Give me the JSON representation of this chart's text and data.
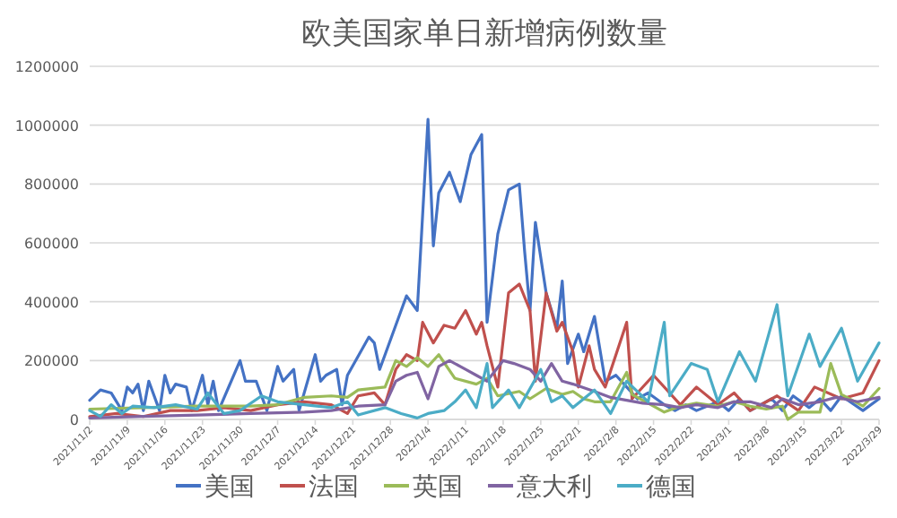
{
  "chart_data": {
    "type": "line",
    "title": "欧美国家单日新增病例数量",
    "xlim": [
      "2021-11-02",
      "2022-03-29"
    ],
    "xticks": [
      {
        "value": "2021-11-02",
        "label": "2021/11/2"
      },
      {
        "value": "2021-11-09",
        "label": "2021/11/9"
      },
      {
        "value": "2021-11-16",
        "label": "2021/11/16"
      },
      {
        "value": "2021-11-23",
        "label": "2021/11/23"
      },
      {
        "value": "2021-11-30",
        "label": "2021/11/30"
      },
      {
        "value": "2021-12-07",
        "label": "2021/12/7"
      },
      {
        "value": "2021-12-14",
        "label": "2021/12/14"
      },
      {
        "value": "2021-12-21",
        "label": "2021/12/21"
      },
      {
        "value": "2021-12-28",
        "label": "2021/12/28"
      },
      {
        "value": "2022-01-04",
        "label": "2022/1/4"
      },
      {
        "value": "2022-01-11",
        "label": "2022/1/11"
      },
      {
        "value": "2022-01-18",
        "label": "2022/1/18"
      },
      {
        "value": "2022-01-25",
        "label": "2022/1/25"
      },
      {
        "value": "2022-02-01",
        "label": "2022/2/1"
      },
      {
        "value": "2022-02-08",
        "label": "2022/2/8"
      },
      {
        "value": "2022-02-15",
        "label": "2022/2/15"
      },
      {
        "value": "2022-02-22",
        "label": "2022/2/22"
      },
      {
        "value": "2022-03-01",
        "label": "2022/3/1"
      },
      {
        "value": "2022-03-08",
        "label": "2022/3/8"
      },
      {
        "value": "2022-03-15",
        "label": "2022/3/15"
      },
      {
        "value": "2022-03-22",
        "label": "2022/3/22"
      },
      {
        "value": "2022-03-29",
        "label": "2022/3/29"
      }
    ],
    "ylim": [
      0,
      1200000
    ],
    "yticks": [
      0,
      200000,
      400000,
      600000,
      800000,
      1000000,
      1200000
    ],
    "grid": "y",
    "legend": "bottom",
    "marker": "none",
    "line_style": "solid",
    "series": [
      {
        "name": "美国",
        "color": "#4472c4",
        "x": [
          "2021-11-02",
          "2021-11-04",
          "2021-11-06",
          "2021-11-08",
          "2021-11-09",
          "2021-11-10",
          "2021-11-11",
          "2021-11-12",
          "2021-11-13",
          "2021-11-15",
          "2021-11-16",
          "2021-11-17",
          "2021-11-18",
          "2021-11-20",
          "2021-11-21",
          "2021-11-23",
          "2021-11-24",
          "2021-11-25",
          "2021-11-26",
          "2021-11-30",
          "2021-12-01",
          "2021-12-03",
          "2021-12-05",
          "2021-12-07",
          "2021-12-08",
          "2021-12-10",
          "2021-12-11",
          "2021-12-14",
          "2021-12-15",
          "2021-12-16",
          "2021-12-18",
          "2021-12-19",
          "2021-12-20",
          "2021-12-24",
          "2021-12-25",
          "2021-12-26",
          "2021-12-30",
          "2021-12-31",
          "2022-01-02",
          "2022-01-04",
          "2022-01-05",
          "2022-01-06",
          "2022-01-08",
          "2022-01-10",
          "2022-01-12",
          "2022-01-14",
          "2022-01-15",
          "2022-01-17",
          "2022-01-19",
          "2022-01-21",
          "2022-01-22",
          "2022-01-23",
          "2022-01-24",
          "2022-01-26",
          "2022-01-28",
          "2022-01-29",
          "2022-01-30",
          "2022-02-01",
          "2022-02-02",
          "2022-02-04",
          "2022-02-06",
          "2022-02-08",
          "2022-02-10",
          "2022-02-12",
          "2022-02-14",
          "2022-02-17",
          "2022-02-19",
          "2022-02-21",
          "2022-02-23",
          "2022-02-27",
          "2022-03-01",
          "2022-03-03",
          "2022-03-05",
          "2022-03-09",
          "2022-03-11",
          "2022-03-13",
          "2022-03-16",
          "2022-03-18",
          "2022-03-20",
          "2022-03-22",
          "2022-03-26",
          "2022-03-29"
        ],
        "values": [
          65000,
          100000,
          90000,
          30000,
          110000,
          90000,
          120000,
          30000,
          130000,
          30000,
          150000,
          90000,
          120000,
          110000,
          30000,
          150000,
          50000,
          130000,
          30000,
          200000,
          130000,
          130000,
          30000,
          180000,
          130000,
          170000,
          30000,
          220000,
          130000,
          150000,
          170000,
          50000,
          150000,
          280000,
          260000,
          170000,
          370000,
          420000,
          370000,
          1020000,
          590000,
          770000,
          840000,
          740000,
          900000,
          968000,
          330000,
          630000,
          780000,
          800000,
          570000,
          370000,
          670000,
          430000,
          310000,
          470000,
          190000,
          290000,
          230000,
          350000,
          130000,
          150000,
          110000,
          70000,
          90000,
          50000,
          30000,
          50000,
          30000,
          60000,
          30000,
          70000,
          30000,
          70000,
          30000,
          80000,
          40000,
          70000,
          30000,
          80000,
          30000,
          70000
        ]
      },
      {
        "name": "法国",
        "color": "#c0504d",
        "x": [
          "2021-11-02",
          "2021-11-07",
          "2021-11-12",
          "2021-11-17",
          "2021-11-22",
          "2021-11-27",
          "2021-12-02",
          "2021-12-07",
          "2021-12-12",
          "2021-12-17",
          "2021-12-20",
          "2021-12-22",
          "2021-12-25",
          "2021-12-27",
          "2021-12-29",
          "2021-12-31",
          "2022-01-02",
          "2022-01-03",
          "2022-01-05",
          "2022-01-07",
          "2022-01-09",
          "2022-01-11",
          "2022-01-13",
          "2022-01-14",
          "2022-01-15",
          "2022-01-17",
          "2022-01-19",
          "2022-01-21",
          "2022-01-23",
          "2022-01-24",
          "2022-01-26",
          "2022-01-28",
          "2022-01-29",
          "2022-01-31",
          "2022-02-01",
          "2022-02-03",
          "2022-02-04",
          "2022-02-06",
          "2022-02-10",
          "2022-02-11",
          "2022-02-15",
          "2022-02-20",
          "2022-02-23",
          "2022-02-27",
          "2022-03-02",
          "2022-03-05",
          "2022-03-10",
          "2022-03-14",
          "2022-03-17",
          "2022-03-22",
          "2022-03-26",
          "2022-03-29"
        ],
        "values": [
          10000,
          20000,
          10000,
          30000,
          30000,
          40000,
          30000,
          50000,
          60000,
          50000,
          20000,
          80000,
          90000,
          50000,
          170000,
          220000,
          200000,
          330000,
          260000,
          320000,
          310000,
          370000,
          290000,
          330000,
          250000,
          110000,
          430000,
          460000,
          370000,
          130000,
          430000,
          300000,
          330000,
          230000,
          110000,
          250000,
          170000,
          110000,
          330000,
          70000,
          150000,
          50000,
          110000,
          50000,
          90000,
          30000,
          80000,
          30000,
          110000,
          70000,
          90000,
          200000
        ]
      },
      {
        "name": "英国",
        "color": "#9bbb59",
        "x": [
          "2021-11-02",
          "2021-11-12",
          "2021-11-22",
          "2021-12-02",
          "2021-12-07",
          "2021-12-12",
          "2021-12-17",
          "2021-12-20",
          "2021-12-22",
          "2021-12-27",
          "2021-12-29",
          "2021-12-31",
          "2022-01-02",
          "2022-01-04",
          "2022-01-06",
          "2022-01-09",
          "2022-01-13",
          "2022-01-15",
          "2022-01-17",
          "2022-01-21",
          "2022-01-23",
          "2022-01-26",
          "2022-01-29",
          "2022-01-31",
          "2022-02-02",
          "2022-02-04",
          "2022-02-07",
          "2022-02-10",
          "2022-02-11",
          "2022-02-14",
          "2022-02-17",
          "2022-02-20",
          "2022-02-23",
          "2022-02-27",
          "2022-03-02",
          "2022-03-05",
          "2022-03-08",
          "2022-03-11",
          "2022-03-12",
          "2022-03-14",
          "2022-03-18",
          "2022-03-20",
          "2022-03-22",
          "2022-03-26",
          "2022-03-29"
        ],
        "values": [
          35000,
          40000,
          45000,
          45000,
          50000,
          75000,
          80000,
          75000,
          100000,
          110000,
          200000,
          180000,
          210000,
          180000,
          220000,
          140000,
          120000,
          140000,
          80000,
          95000,
          70000,
          105000,
          85000,
          95000,
          70000,
          60000,
          60000,
          160000,
          85000,
          55000,
          25000,
          45000,
          55000,
          45000,
          60000,
          45000,
          35000,
          45000,
          0,
          25000,
          25000,
          190000,
          85000,
          45000,
          105000
        ]
      },
      {
        "name": "意大利",
        "color": "#8064a2",
        "x": [
          "2021-11-02",
          "2021-11-12",
          "2021-11-22",
          "2021-12-02",
          "2021-12-12",
          "2021-12-17",
          "2021-12-22",
          "2021-12-27",
          "2021-12-29",
          "2021-12-31",
          "2022-01-02",
          "2022-01-04",
          "2022-01-06",
          "2022-01-08",
          "2022-01-11",
          "2022-01-13",
          "2022-01-15",
          "2022-01-18",
          "2022-01-20",
          "2022-01-23",
          "2022-01-25",
          "2022-01-27",
          "2022-01-29",
          "2022-01-31",
          "2022-02-04",
          "2022-02-07",
          "2022-02-10",
          "2022-02-13",
          "2022-02-17",
          "2022-02-20",
          "2022-02-23",
          "2022-02-27",
          "2022-03-02",
          "2022-03-05",
          "2022-03-09",
          "2022-03-11",
          "2022-03-14",
          "2022-03-18",
          "2022-03-21",
          "2022-03-25",
          "2022-03-29"
        ],
        "values": [
          5000,
          10000,
          15000,
          20000,
          25000,
          30000,
          45000,
          50000,
          130000,
          150000,
          160000,
          70000,
          180000,
          200000,
          170000,
          150000,
          130000,
          200000,
          190000,
          170000,
          130000,
          190000,
          130000,
          120000,
          95000,
          75000,
          65000,
          55000,
          50000,
          40000,
          50000,
          40000,
          60000,
          60000,
          40000,
          70000,
          50000,
          60000,
          75000,
          60000,
          75000
        ]
      },
      {
        "name": "德国",
        "color": "#4bacc6",
        "x": [
          "2021-11-02",
          "2021-11-04",
          "2021-11-06",
          "2021-11-08",
          "2021-11-10",
          "2021-11-14",
          "2021-11-18",
          "2021-11-22",
          "2021-11-24",
          "2021-11-27",
          "2021-11-30",
          "2021-12-04",
          "2021-12-07",
          "2021-12-12",
          "2021-12-17",
          "2021-12-20",
          "2021-12-22",
          "2021-12-27",
          "2021-12-30",
          "2022-01-02",
          "2022-01-04",
          "2022-01-07",
          "2022-01-09",
          "2022-01-11",
          "2022-01-13",
          "2022-01-15",
          "2022-01-16",
          "2022-01-19",
          "2022-01-21",
          "2022-01-25",
          "2022-01-27",
          "2022-01-29",
          "2022-01-31",
          "2022-02-04",
          "2022-02-07",
          "2022-02-10",
          "2022-02-14",
          "2022-02-17",
          "2022-02-18",
          "2022-02-22",
          "2022-02-25",
          "2022-02-27",
          "2022-03-03",
          "2022-03-06",
          "2022-03-10",
          "2022-03-12",
          "2022-03-16",
          "2022-03-18",
          "2022-03-22",
          "2022-03-25",
          "2022-03-29"
        ],
        "values": [
          30000,
          10000,
          50000,
          20000,
          45000,
          40000,
          50000,
          35000,
          90000,
          20000,
          30000,
          80000,
          60000,
          50000,
          40000,
          60000,
          15000,
          40000,
          20000,
          5000,
          20000,
          30000,
          60000,
          100000,
          40000,
          190000,
          40000,
          100000,
          40000,
          170000,
          60000,
          80000,
          40000,
          100000,
          20000,
          130000,
          60000,
          330000,
          80000,
          190000,
          170000,
          60000,
          230000,
          130000,
          390000,
          80000,
          290000,
          180000,
          310000,
          130000,
          260000
        ]
      }
    ]
  }
}
